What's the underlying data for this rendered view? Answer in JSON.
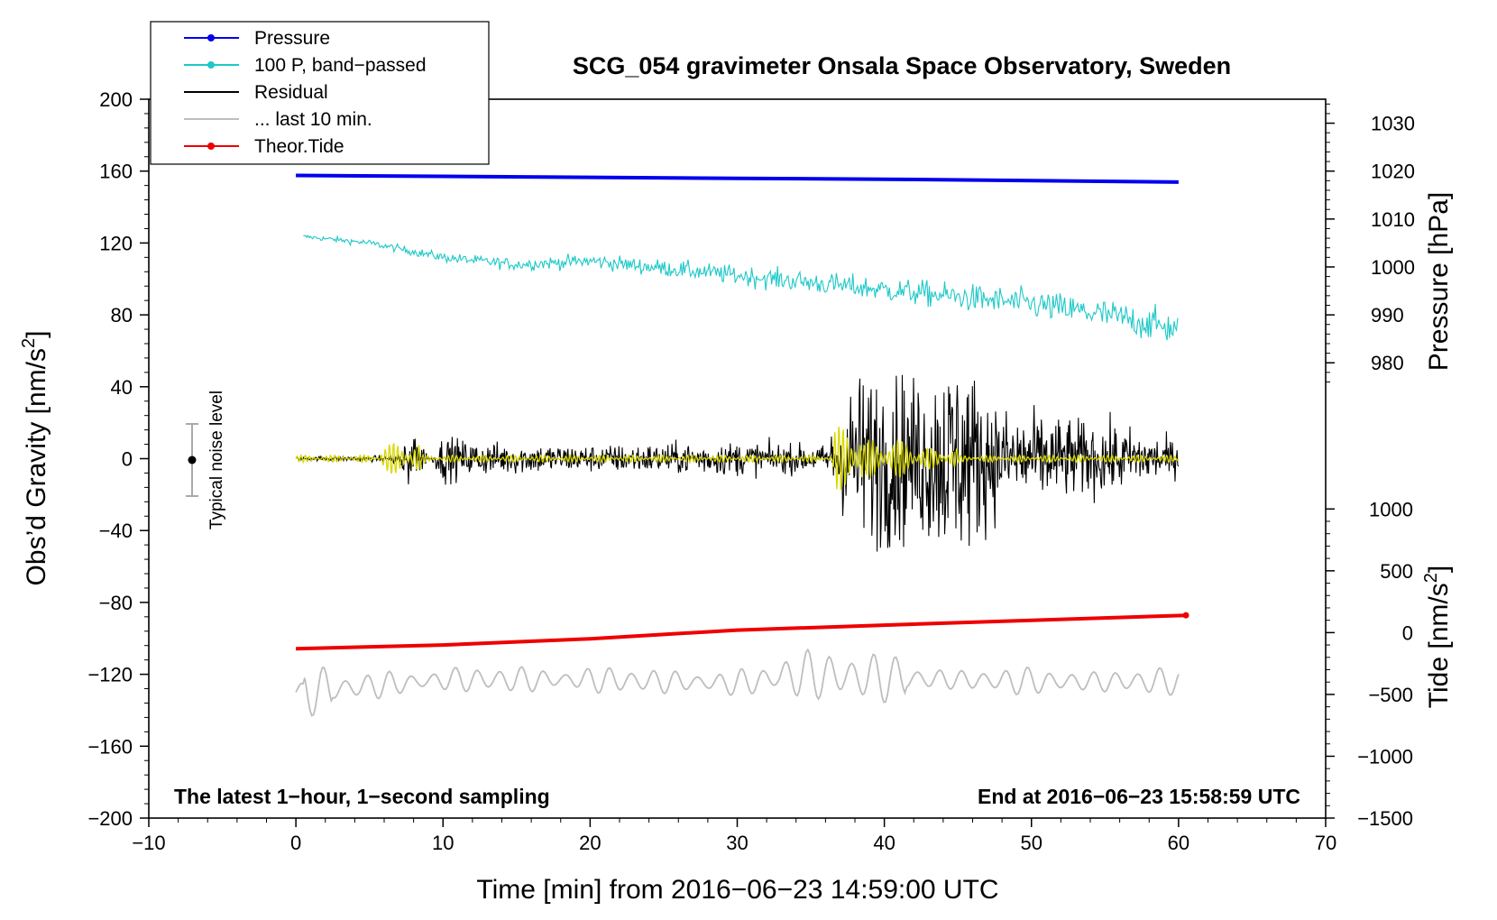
{
  "chart_data": {
    "type": "line",
    "title": "SCG_054 gravimeter Onsala Space Observatory, Sweden",
    "xlabel": "Time [min] from 2016−06−23 14:59:00 UTC",
    "ylabel_left": "Obs’d Gravity [nm/s",
    "ylabel_left_sup": "2",
    "ylabel_left_tail": "]",
    "ylabel_right_pressure": "Pressure [hPa]",
    "ylabel_right_tide": "Tide [nm/s",
    "ylabel_right_tide_sup": "2",
    "ylabel_right_tide_tail": "]",
    "xlim": [
      -10,
      70
    ],
    "ylim_left": [
      -200,
      200
    ],
    "x_ticks": [
      "−10",
      "0",
      "10",
      "20",
      "30",
      "40",
      "50",
      "60",
      "70"
    ],
    "y_left_ticks": [
      "200",
      "160",
      "120",
      "80",
      "40",
      "0",
      "−40",
      "−80",
      "−120",
      "−160",
      "−200"
    ],
    "pressure_axis": {
      "range": [
        975,
        1035
      ],
      "gravity_span": [
        40,
        200
      ],
      "ticks": [
        "980",
        "990",
        "1000",
        "1010",
        "1020",
        "1030"
      ]
    },
    "tide_axis": {
      "range": [
        -1500,
        1000
      ],
      "gravity_span": [
        -200,
        -28
      ],
      "ticks": [
        "−1500",
        "−1000",
        "−500",
        "0",
        "500",
        "1000"
      ]
    },
    "legend": [
      {
        "label": "Pressure",
        "color": "#0000ee",
        "marker": true
      },
      {
        "label": "100 P, band−passed",
        "color": "#1ec8c8",
        "marker": true
      },
      {
        "label": "Residual",
        "color": "#000000",
        "marker": false
      },
      {
        "label": "... last 10 min.",
        "color": "#bebebe",
        "marker": false
      },
      {
        "label": "Theor.Tide",
        "color": "#ee0000",
        "marker": true
      }
    ],
    "series": [
      {
        "name": "Pressure",
        "axis": "pressure",
        "color": "#0000ee",
        "x": [
          0,
          10,
          20,
          30,
          40,
          50,
          60
        ],
        "values": [
          1019.1,
          1018.9,
          1018.7,
          1018.5,
          1018.3,
          1018.0,
          1017.7
        ]
      },
      {
        "name": "100 P, band-passed",
        "axis": "gravity",
        "color": "#1ec8c8",
        "x": [
          0,
          5,
          10,
          15,
          20,
          25,
          30,
          35,
          40,
          45,
          50,
          55,
          60
        ],
        "values": [
          124,
          120,
          112,
          108,
          110,
          106,
          102,
          98,
          94,
          90,
          86,
          80,
          72
        ]
      },
      {
        "name": "Residual",
        "axis": "gravity",
        "color": "#000000",
        "x": [
          0,
          6,
          8,
          10,
          12,
          20,
          30,
          36,
          38,
          40,
          42,
          45,
          48,
          52,
          56,
          60
        ],
        "values": [
          1,
          2,
          -18,
          14,
          10,
          8,
          10,
          8,
          50,
          55,
          48,
          64,
          30,
          25,
          20,
          10
        ]
      },
      {
        "name": "... last 10 min.",
        "axis": "gravity",
        "color": "#bebebe",
        "x": [
          0,
          10,
          20,
          30,
          34.5,
          40,
          50,
          60
        ],
        "values": [
          -130,
          -123,
          -123,
          -125,
          -120,
          -122,
          -124,
          -124
        ]
      },
      {
        "name": "Theor.Tide",
        "axis": "tide",
        "color": "#ee0000",
        "x": [
          0,
          10,
          20,
          30,
          40,
          50,
          60.5
        ],
        "values": [
          -130,
          -100,
          -50,
          20,
          60,
          100,
          140
        ]
      }
    ],
    "noise_bar": {
      "label": "Typical noise level",
      "x": -7,
      "center": 0,
      "half_range": 20
    },
    "annotation_left": "The latest 1−hour, 1−second sampling",
    "annotation_right": "End at 2016−06−23 15:58:59 UTC"
  }
}
